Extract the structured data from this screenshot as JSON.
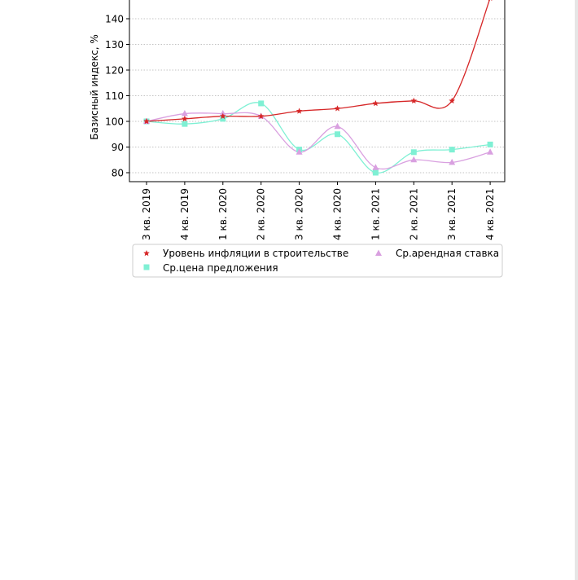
{
  "chart_data": {
    "type": "line",
    "categories": [
      "3 кв. 2019",
      "4 кв. 2019",
      "1 кв. 2020",
      "2 кв. 2020",
      "3 кв. 2020",
      "4 кв. 2020",
      "1 кв. 2021",
      "2 кв. 2021",
      "3 кв. 2021",
      "4 кв. 2021"
    ],
    "ylabel": "Базисный индекс, %",
    "yticks": [
      80,
      90,
      100,
      110,
      120,
      130,
      140
    ],
    "ylim": [
      76.5,
      148
    ],
    "grid": "horizontal dotted",
    "legend_position": "bottom",
    "series": [
      {
        "name": "Уровень инфляции в строительстве",
        "marker": "star",
        "color": "#d62728",
        "values": [
          100,
          101,
          102,
          102,
          104,
          105,
          107,
          108,
          108,
          148
        ]
      },
      {
        "name": "Ср.арендная ставка",
        "marker": "triangle",
        "color": "#d9a0e0",
        "values": [
          100,
          103,
          103,
          102,
          88,
          98,
          82,
          85,
          84,
          88
        ]
      },
      {
        "name": "Ср.цена предложения",
        "marker": "square",
        "color": "#7ff0d4",
        "values": [
          100,
          99,
          101,
          107,
          89,
          95,
          80,
          88,
          89,
          91
        ]
      }
    ]
  }
}
